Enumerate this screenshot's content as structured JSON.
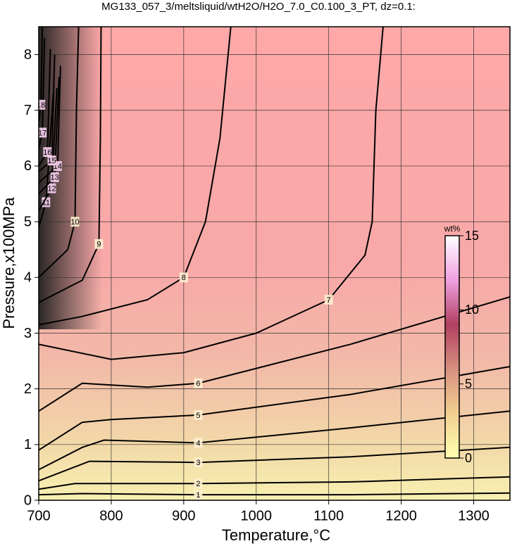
{
  "chart_data": {
    "type": "contour",
    "title": "MG133_057_3/meltsliquid/wtH2O/H2O_7.0_C0.100_3_PT, dz=0.1:",
    "xlabel": "Temperature,°C",
    "ylabel": "Pressure,x100MPa",
    "xlim": [
      700,
      1350
    ],
    "ylim": [
      0,
      8.5
    ],
    "xticks": [
      700,
      800,
      900,
      1000,
      1100,
      1200,
      1300
    ],
    "yticks": [
      0,
      1,
      2,
      3,
      4,
      5,
      6,
      7,
      8
    ],
    "grid": true,
    "line_color": "#000000",
    "colorbar": {
      "label": "wt%",
      "lim": [
        0,
        15
      ],
      "ticks": [
        0,
        5,
        10,
        15
      ],
      "colors": [
        "#ffffb0",
        "#f0d090",
        "#d89080",
        "#b04060",
        "#f0a0e0",
        "#ffffff"
      ]
    },
    "contours": [
      {
        "level": 1,
        "x": [
          700,
          760,
          920,
          1130,
          1350
        ],
        "y": [
          0.1,
          0.12,
          0.1,
          0.1,
          0.13
        ]
      },
      {
        "level": 2,
        "x": [
          700,
          750,
          920,
          1130,
          1350
        ],
        "y": [
          0.2,
          0.3,
          0.3,
          0.33,
          0.42
        ]
      },
      {
        "level": 3,
        "x": [
          700,
          770,
          920,
          1130,
          1350
        ],
        "y": [
          0.35,
          0.7,
          0.68,
          0.78,
          0.95
        ]
      },
      {
        "level": 4,
        "x": [
          700,
          760,
          790,
          920,
          1130,
          1350
        ],
        "y": [
          0.55,
          0.95,
          1.08,
          1.03,
          1.3,
          1.6
        ]
      },
      {
        "level": 5,
        "x": [
          700,
          760,
          800,
          920,
          1130,
          1350
        ],
        "y": [
          0.9,
          1.4,
          1.45,
          1.53,
          1.9,
          2.4
        ]
      },
      {
        "level": 6,
        "x": [
          700,
          760,
          850,
          920,
          1130,
          1350
        ],
        "y": [
          1.6,
          2.1,
          2.03,
          2.1,
          2.8,
          3.65
        ]
      },
      {
        "level": 7,
        "x": [
          700,
          800,
          900,
          1000,
          1100,
          1150,
          1160,
          1165,
          1175
        ],
        "y": [
          2.8,
          2.53,
          2.65,
          3.0,
          3.6,
          4.4,
          5.0,
          7.0,
          8.5
        ]
      },
      {
        "level": 8,
        "x": [
          700,
          760,
          850,
          900,
          930,
          950,
          965
        ],
        "y": [
          3.15,
          3.3,
          3.6,
          4.0,
          5.0,
          6.5,
          8.5
        ]
      },
      {
        "level": 9,
        "x": [
          700,
          760,
          783,
          785,
          786
        ],
        "y": [
          3.55,
          3.95,
          4.6,
          6.5,
          8.5
        ]
      },
      {
        "level": 10,
        "x": [
          700,
          740,
          750,
          752,
          755
        ],
        "y": [
          4.0,
          4.5,
          5.0,
          7.0,
          8.5
        ]
      },
      {
        "level": 11,
        "x": [
          700,
          710,
          720
        ],
        "y": [
          4.9,
          5.35,
          7.3
        ]
      },
      {
        "level": 12,
        "x": [
          700,
          718,
          725
        ],
        "y": [
          5.2,
          5.6,
          7.4
        ]
      },
      {
        "level": 13,
        "x": [
          700,
          722,
          728
        ],
        "y": [
          5.5,
          5.8,
          7.6
        ]
      },
      {
        "level": 14,
        "x": [
          700,
          726,
          730
        ],
        "y": [
          5.7,
          6.0,
          7.8
        ]
      },
      {
        "level": 15,
        "x": [
          700,
          718,
          722
        ],
        "y": [
          5.9,
          6.1,
          8.0
        ]
      },
      {
        "level": 16,
        "x": [
          700,
          712,
          716
        ],
        "y": [
          6.0,
          6.25,
          8.1
        ]
      },
      {
        "level": 17,
        "x": [
          700,
          705,
          708
        ],
        "y": [
          6.3,
          6.6,
          8.3
        ]
      },
      {
        "level": 18,
        "x": [
          700,
          703,
          705
        ],
        "y": [
          6.8,
          7.1,
          8.5
        ]
      }
    ]
  }
}
